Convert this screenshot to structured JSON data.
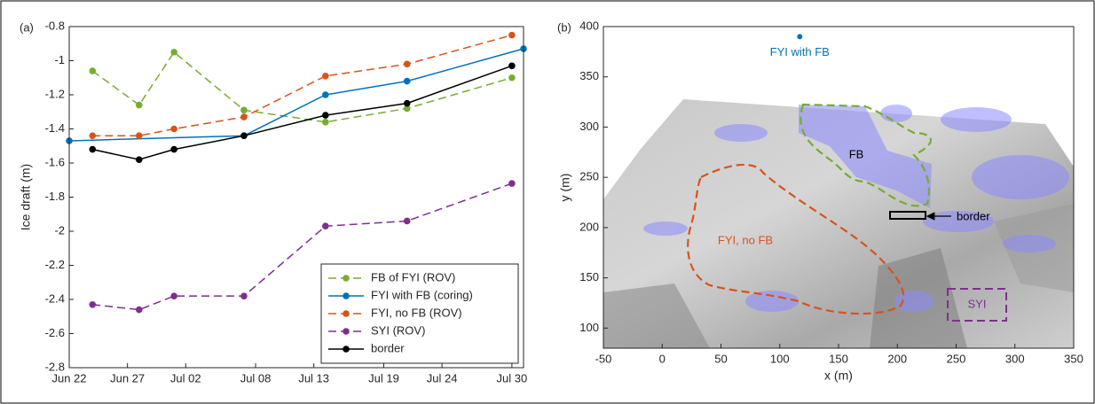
{
  "chart_data": [
    {
      "type": "line",
      "panel_label": "(a)",
      "ylabel": "Ice draft (m)",
      "xlim": [
        "Jun 22",
        "Jul 31"
      ],
      "xticks": [
        "Jun 22",
        "Jun 27",
        "Jul 02",
        "Jul 08",
        "Jul 13",
        "Jul 19",
        "Jul 24",
        "Jul 30"
      ],
      "ylim": [
        -2.8,
        -0.8
      ],
      "yticks": [
        -2.8,
        -2.6,
        -2.4,
        -2.2,
        -2,
        -1.8,
        -1.6,
        -1.4,
        -1.2,
        -1,
        -0.8
      ],
      "legend": "lower right",
      "dashed": [
        "FB of FYI (ROV)",
        "FYI, no FB (ROV)",
        "SYI (ROV)"
      ],
      "series": [
        {
          "name": "FB of FYI (ROV)",
          "color": "#77ac30",
          "x": [
            "Jun 24",
            "Jun 28",
            "Jul 01",
            "Jul 07",
            "Jul 14",
            "Jul 21",
            "Jul 30"
          ],
          "values": [
            -1.06,
            -1.26,
            -0.95,
            -1.29,
            -1.36,
            -1.28,
            -1.1
          ]
        },
        {
          "name": "FYI with FB (coring)",
          "color": "#0072bd",
          "x": [
            "Jun 22",
            "Jul 07",
            "Jul 14",
            "Jul 21",
            "Jul 31"
          ],
          "values": [
            -1.47,
            -1.44,
            -1.2,
            -1.12,
            -0.93
          ]
        },
        {
          "name": "FYI, no FB (ROV)",
          "color": "#d95319",
          "x": [
            "Jun 24",
            "Jun 28",
            "Jul 01",
            "Jul 07",
            "Jul 14",
            "Jul 21",
            "Jul 30"
          ],
          "values": [
            -1.44,
            -1.44,
            -1.4,
            -1.33,
            -1.09,
            -1.02,
            -0.85
          ]
        },
        {
          "name": "SYI (ROV)",
          "color": "#7e2f8e",
          "x": [
            "Jun 24",
            "Jun 28",
            "Jul 01",
            "Jul 07",
            "Jul 14",
            "Jul 21",
            "Jul 30"
          ],
          "values": [
            -2.43,
            -2.46,
            -2.38,
            -2.38,
            -1.97,
            -1.94,
            -1.72
          ]
        },
        {
          "name": "border",
          "color": "#000000",
          "x": [
            "Jun 24",
            "Jun 28",
            "Jul 01",
            "Jul 07",
            "Jul 14",
            "Jul 21",
            "Jul 30"
          ],
          "values": [
            -1.52,
            -1.58,
            -1.52,
            -1.44,
            -1.32,
            -1.25,
            -1.03
          ]
        }
      ]
    },
    {
      "type": "scatter",
      "panel_label": "(b)",
      "xlabel": "x (m)",
      "ylabel": "y (m)",
      "xlim": [
        -50,
        350
      ],
      "xticks": [
        -50,
        0,
        50,
        100,
        150,
        200,
        250,
        300,
        350
      ],
      "ylim": [
        80,
        400
      ],
      "yticks": [
        100,
        150,
        200,
        250,
        300,
        350,
        400
      ],
      "series": [
        {
          "name": "FYI with FB",
          "color": "#0072bd",
          "x": [
            117
          ],
          "values": [
            390
          ]
        }
      ],
      "annotations": [
        "FB",
        "FYI, no FB",
        "border",
        "SYI"
      ]
    }
  ]
}
